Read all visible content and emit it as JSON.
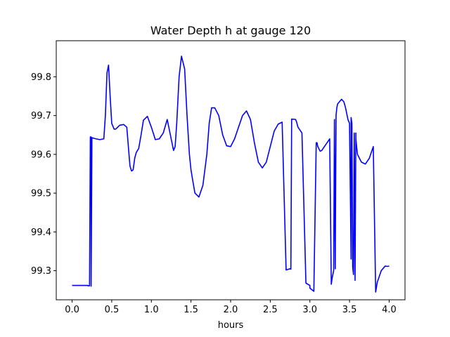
{
  "chart_data": {
    "type": "line",
    "title": "Water Depth h at gauge 120",
    "xlabel": "hours",
    "ylabel": "",
    "xlim": [
      -0.2,
      4.2
    ],
    "ylim": [
      99.225,
      99.893
    ],
    "xticks": [
      0.0,
      0.5,
      1.0,
      1.5,
      2.0,
      2.5,
      3.0,
      3.5,
      4.0
    ],
    "xtick_labels": [
      "0.0",
      "0.5",
      "1.0",
      "1.5",
      "2.0",
      "2.5",
      "3.0",
      "3.5",
      "4.0"
    ],
    "yticks": [
      99.3,
      99.4,
      99.5,
      99.6,
      99.7,
      99.8
    ],
    "ytick_labels": [
      "99.3",
      "99.4",
      "99.5",
      "99.6",
      "99.7",
      "99.8"
    ],
    "grid": false,
    "series": [
      {
        "color": "#0000ff",
        "x": [
          0.0,
          0.2,
          0.2,
          0.22,
          0.23,
          0.24,
          0.24,
          0.25,
          0.3,
          0.35,
          0.4,
          0.42,
          0.44,
          0.46,
          0.48,
          0.5,
          0.53,
          0.55,
          0.6,
          0.65,
          0.69,
          0.71,
          0.73,
          0.75,
          0.77,
          0.79,
          0.81,
          0.84,
          0.87,
          0.9,
          0.95,
          1.0,
          1.05,
          1.1,
          1.15,
          1.2,
          1.25,
          1.28,
          1.3,
          1.32,
          1.35,
          1.38,
          1.42,
          1.45,
          1.48,
          1.5,
          1.52,
          1.55,
          1.6,
          1.65,
          1.7,
          1.73,
          1.76,
          1.8,
          1.85,
          1.9,
          1.95,
          2.0,
          2.05,
          2.1,
          2.15,
          2.2,
          2.25,
          2.3,
          2.35,
          2.4,
          2.45,
          2.5,
          2.55,
          2.6,
          2.65,
          2.7,
          2.75,
          2.76,
          2.77,
          2.82,
          2.83,
          2.85,
          2.9,
          2.95,
          3.0,
          3.0,
          3.05,
          3.08,
          3.09,
          3.1,
          3.13,
          3.15,
          3.2,
          3.25,
          3.27,
          3.28,
          3.3,
          3.31,
          3.32,
          3.33,
          3.34,
          3.35,
          3.4,
          3.43,
          3.45,
          3.48,
          3.5,
          3.52,
          3.52,
          3.53,
          3.54,
          3.55,
          3.56,
          3.57,
          3.57,
          3.58,
          3.58,
          3.6,
          3.65,
          3.7,
          3.75,
          3.8,
          3.83,
          3.83,
          3.85,
          3.9,
          3.95,
          3.98,
          4.0
        ],
        "y": [
          99.262,
          99.262,
          99.261,
          99.261,
          99.645,
          99.645,
          99.26,
          99.643,
          99.64,
          99.638,
          99.64,
          99.7,
          99.81,
          99.83,
          99.75,
          99.68,
          99.665,
          99.665,
          99.675,
          99.677,
          99.67,
          99.62,
          99.57,
          99.557,
          99.56,
          99.59,
          99.605,
          99.615,
          99.65,
          99.688,
          99.698,
          99.67,
          99.638,
          99.64,
          99.655,
          99.69,
          99.64,
          99.61,
          99.62,
          99.68,
          99.8,
          99.853,
          99.82,
          99.7,
          99.6,
          99.56,
          99.535,
          99.5,
          99.49,
          99.52,
          99.6,
          99.68,
          99.72,
          99.72,
          99.7,
          99.65,
          99.622,
          99.62,
          99.64,
          99.67,
          99.7,
          99.712,
          99.69,
          99.63,
          99.58,
          99.565,
          99.58,
          99.62,
          99.66,
          99.678,
          99.683,
          99.302,
          99.305,
          99.304,
          99.691,
          99.69,
          99.685,
          99.67,
          99.655,
          99.268,
          99.262,
          99.255,
          99.247,
          99.63,
          99.63,
          99.62,
          99.608,
          99.61,
          99.625,
          99.64,
          99.265,
          99.28,
          99.3,
          99.69,
          99.305,
          99.7,
          99.72,
          99.73,
          99.742,
          99.735,
          99.72,
          99.69,
          99.68,
          99.33,
          99.695,
          99.68,
          99.31,
          99.29,
          99.655,
          99.275,
          99.275,
          99.655,
          99.64,
          99.6,
          99.58,
          99.575,
          99.59,
          99.62,
          99.245,
          99.245,
          99.27,
          99.3,
          99.312,
          99.311,
          99.312
        ]
      }
    ]
  }
}
